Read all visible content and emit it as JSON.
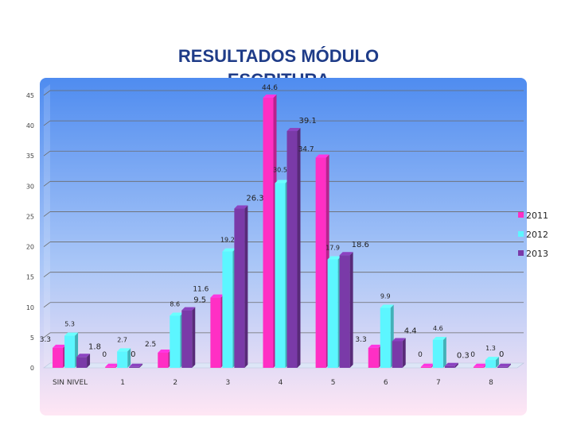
{
  "title_line1": "RESULTADOS MÓDULO",
  "title_line2": "ESCRITURA",
  "chart_data": {
    "type": "bar",
    "title": "RESULTADOS MÓDULO ESCRITURA",
    "categories": [
      "SIN NIVEL",
      "1",
      "2",
      "3",
      "4",
      "5",
      "6",
      "7",
      "8"
    ],
    "series": [
      {
        "name": "2011",
        "color": "#ff2fc4",
        "values": [
          3.3,
          0,
          2.5,
          11.6,
          44.6,
          34.7,
          3.3,
          0,
          0
        ]
      },
      {
        "name": "2012",
        "color": "#5cf6ff",
        "values": [
          5.3,
          2.7,
          8.6,
          19.2,
          30.5,
          17.9,
          9.9,
          4.6,
          1.3
        ]
      },
      {
        "name": "2013",
        "color": "#7a3aa8",
        "values": [
          1.8,
          0,
          9.5,
          26.3,
          39.1,
          18.6,
          4.4,
          0.3,
          0
        ]
      }
    ],
    "data_labels": [
      [
        "3.3",
        "0",
        "2.5",
        "11.6",
        "44.6",
        "34.7",
        "3.3",
        "0",
        "0"
      ],
      [
        "5.3",
        "2.7",
        "8.6",
        "19.2",
        "30.5",
        "17.9",
        "9.9",
        "4.6",
        "1.3"
      ],
      [
        "1.8",
        "0",
        "9.5",
        "26.3",
        "39.1",
        "18.6",
        "4.4",
        "0.3",
        "0"
      ]
    ],
    "yticks": [
      "0",
      "5",
      "10",
      "15",
      "20",
      "25",
      "30",
      "35",
      "40",
      "45"
    ],
    "ylim": [
      0,
      45
    ],
    "grid": true,
    "legend_position": "right",
    "xlabel": "",
    "ylabel": ""
  }
}
